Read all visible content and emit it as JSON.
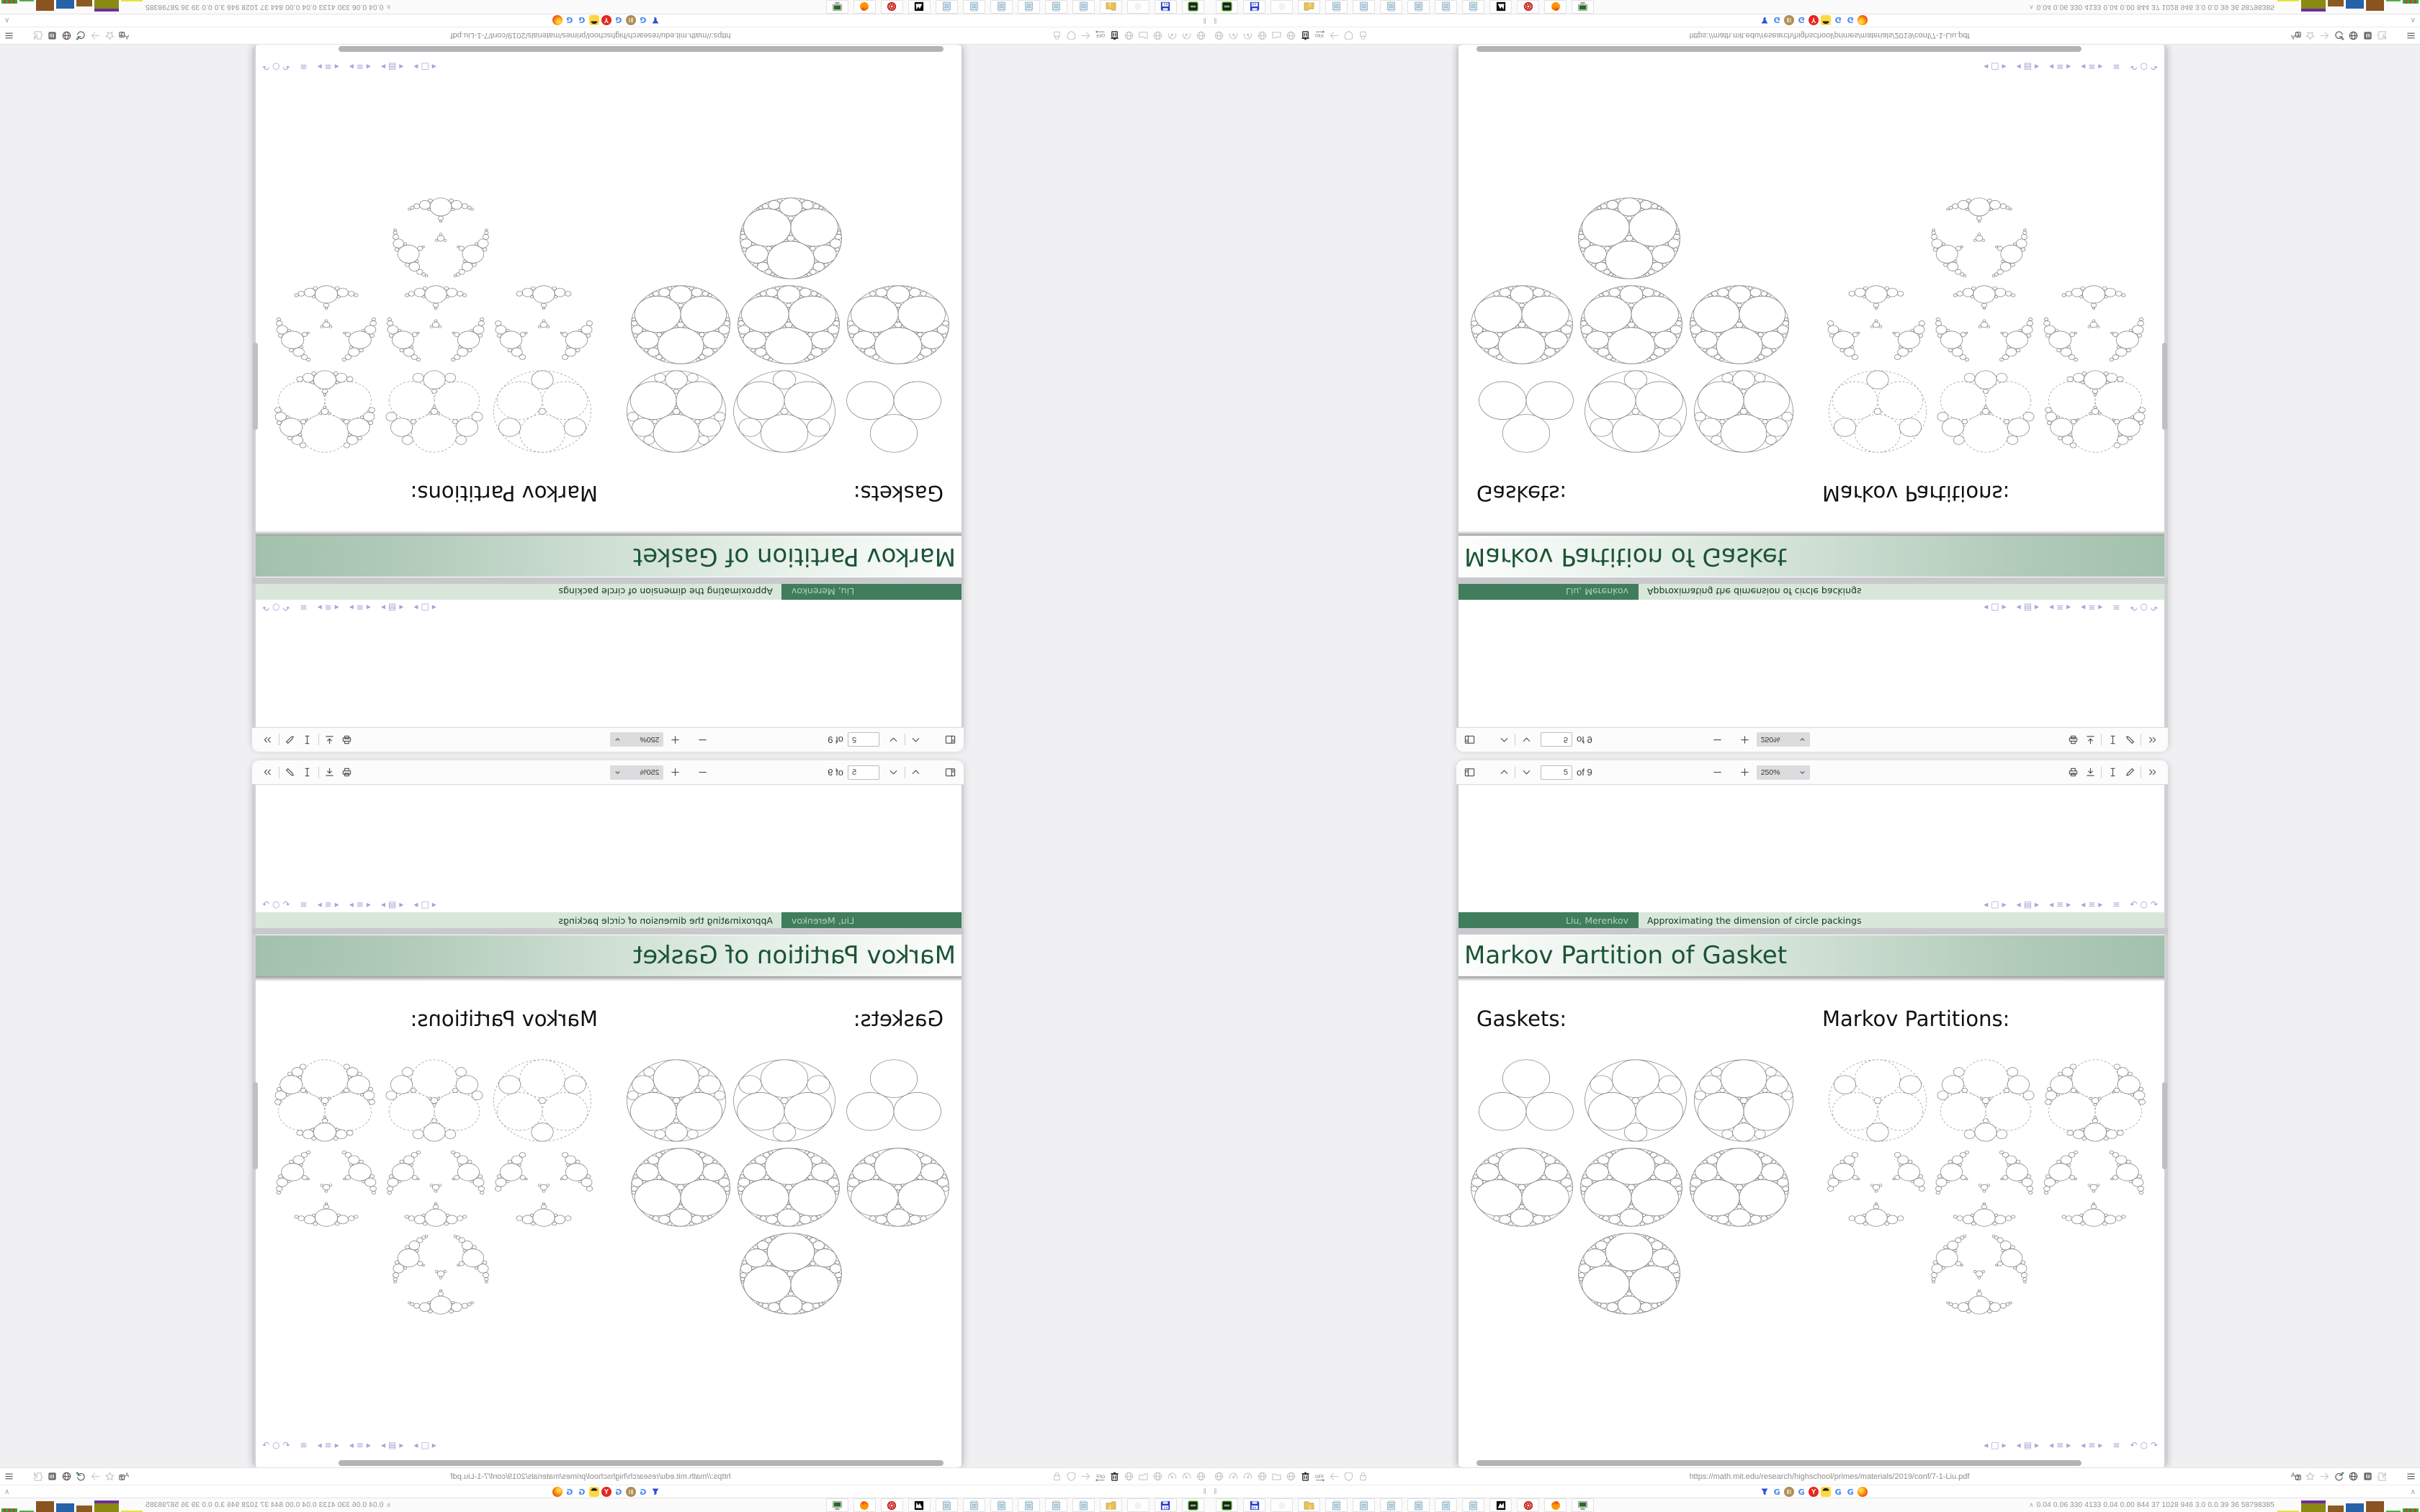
{
  "pdf": {
    "toolbar": {
      "page_input_value": "5",
      "page_count_label": "of 9",
      "zoom_level": "250%",
      "left_icons": [
        "sidebar-toggle",
        "page-up",
        "page-down"
      ],
      "zoom_icons": [
        "zoom-out",
        "zoom-in"
      ],
      "right_icons": [
        "print",
        "save",
        "text-select",
        "draw",
        "more-tools"
      ]
    }
  },
  "slide": {
    "frame_title": "Markov Partition of Gasket",
    "footer_author": "Liu, Merenkov",
    "footer_title": "Approximating the dimension of circle packings",
    "headings": {
      "left": "Gaskets:",
      "right": "Markov Partitions:"
    },
    "nav_symbols": [
      "prev-slide",
      "slide",
      "next-slide",
      "prev-frame",
      "frames",
      "next-frame",
      "prev-section",
      "section",
      "next-section",
      "prev-subsection",
      "subsection",
      "next-subsection",
      "appendix",
      "undo",
      "search",
      "redo"
    ]
  },
  "figures": [
    {
      "column": "Gaskets",
      "row": 1,
      "label": "three tangent circles",
      "outer": "none",
      "mains": "solid",
      "depth": 0
    },
    {
      "column": "Gaskets",
      "row": 1,
      "label": "gasket iteration 1",
      "outer": "solid",
      "mains": "solid",
      "depth": 1
    },
    {
      "column": "Gaskets",
      "row": 1,
      "label": "gasket iteration 2",
      "outer": "solid",
      "mains": "solid",
      "depth": 2
    },
    {
      "column": "Gaskets",
      "row": 2,
      "label": "gasket iteration 3",
      "outer": "solid",
      "mains": "solid",
      "depth": 3
    },
    {
      "column": "Gaskets",
      "row": 2,
      "label": "gasket iteration 4",
      "outer": "solid",
      "mains": "solid",
      "depth": 4
    },
    {
      "column": "Gaskets",
      "row": 2,
      "label": "gasket iteration 4",
      "outer": "solid",
      "mains": "solid",
      "depth": 4
    },
    {
      "column": "Gaskets",
      "row": 3,
      "label": "deep apollonian gasket",
      "outer": "solid",
      "mains": "solid",
      "depth": 5
    },
    {
      "column": "Markov Partitions",
      "row": 1,
      "label": "partition outline",
      "outer": "dashed",
      "mains": "dashed",
      "depth": 1
    },
    {
      "column": "Markov Partitions",
      "row": 1,
      "label": "partition iteration 2",
      "outer": "none",
      "mains": "dashed",
      "depth": 2
    },
    {
      "column": "Markov Partitions",
      "row": 1,
      "label": "partition cluster",
      "outer": "none",
      "mains": "dashed",
      "depth": 3
    },
    {
      "column": "Markov Partitions",
      "row": 2,
      "label": "partition ring",
      "outer": "none",
      "mains": "none",
      "depth": 3
    },
    {
      "column": "Markov Partitions",
      "row": 2,
      "label": "partition ring fine",
      "outer": "none",
      "mains": "none",
      "depth": 4
    },
    {
      "column": "Markov Partitions",
      "row": 2,
      "label": "partition ring fine",
      "outer": "none",
      "mains": "none",
      "depth": 4
    },
    {
      "column": "Markov Partitions",
      "row": 3,
      "label": "deep partition cluster",
      "outer": "none",
      "mains": "none",
      "depth": 5
    }
  ],
  "browser": {
    "url": "https://math.mit.edu/research/highschool/primes/materials/2019/conf/7-1-Liu.pdf",
    "navbar_left_icons": [
      "globe",
      "gauge",
      "gauge",
      "globe",
      "folder",
      "chevrons-right",
      "trash",
      "off-toggle",
      "back-arrow",
      "shield",
      "lock"
    ],
    "navbar_right_icons": [
      "translate",
      "star",
      "arrow-right",
      "reload",
      "globe",
      "library",
      "puzzle",
      "chevrons-right",
      "menu"
    ]
  },
  "shortcut_bar": {
    "handle": "‖",
    "collapse_chevron": "∧",
    "favicons": [
      "funnel",
      "google",
      "coin",
      "google",
      "yandex",
      "emoji",
      "google",
      "google",
      "firefox"
    ]
  },
  "taskbar": {
    "app_icons": [
      "terminal-green",
      "floppy-64",
      "ghost",
      "folder-yellow",
      "notepad",
      "notepad",
      "notepad",
      "notepad",
      "notepad",
      "notepad",
      "black-app",
      "red-gear",
      "firefox",
      "monitor"
    ],
    "system_monitor_values": "0.04 0.06 330 4133 0.04 0.00 844 37 1028 946 3.0 0.0 39 36 58798385",
    "monitor_blocks": [
      {
        "name": "yellow-line",
        "color": "#e8e23a",
        "w": 30,
        "h": 2
      },
      {
        "name": "olive-purple",
        "color": "#8a8a12",
        "cap": "#6d2e9e",
        "w": 34,
        "h": 12
      },
      {
        "name": "brown-small",
        "color": "#8a5a22",
        "w": 22,
        "h": 9
      },
      {
        "name": "blue",
        "color": "#2762a8",
        "w": 25,
        "h": 12
      },
      {
        "name": "brown-big",
        "color": "#8a5420",
        "w": 25,
        "h": 15
      },
      {
        "name": "green-line",
        "color": "#4fae44",
        "w": 20,
        "h": 2
      },
      {
        "name": "green-red",
        "color": "#3f9e3a",
        "accent": "#c03a2e",
        "w": 22,
        "h": 5
      }
    ]
  },
  "colors": {
    "desktop": "#f0f0f2",
    "green_dark": "#3f7d5c",
    "green_dark_text": "#b7d0ba",
    "green_pale": "#d9e7da",
    "green_title": "#1b5434",
    "nav_symbol": "#a3a3d6"
  }
}
